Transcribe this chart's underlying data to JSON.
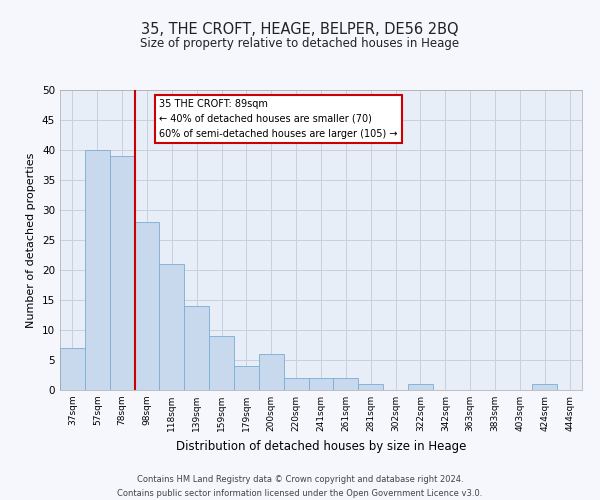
{
  "title": "35, THE CROFT, HEAGE, BELPER, DE56 2BQ",
  "subtitle": "Size of property relative to detached houses in Heage",
  "xlabel": "Distribution of detached houses by size in Heage",
  "ylabel": "Number of detached properties",
  "bins": [
    "37sqm",
    "57sqm",
    "78sqm",
    "98sqm",
    "118sqm",
    "139sqm",
    "159sqm",
    "179sqm",
    "200sqm",
    "220sqm",
    "241sqm",
    "261sqm",
    "281sqm",
    "302sqm",
    "322sqm",
    "342sqm",
    "363sqm",
    "383sqm",
    "403sqm",
    "424sqm",
    "444sqm"
  ],
  "bar_values": [
    7,
    40,
    39,
    28,
    21,
    14,
    9,
    4,
    6,
    2,
    2,
    2,
    1,
    0,
    1,
    0,
    0,
    0,
    0,
    1,
    0
  ],
  "bar_color": "#c8d9ee",
  "bar_edge_color": "#7aadd4",
  "grid_color": "#c8d0dc",
  "background_color": "#e8eef7",
  "annotation_title": "35 THE CROFT: 89sqm",
  "annotation_line1": "← 40% of detached houses are smaller (70)",
  "annotation_line2": "60% of semi-detached houses are larger (105) →",
  "annotation_box_color": "#ffffff",
  "annotation_border_color": "#cc0000",
  "redline_color": "#cc0000",
  "ylim": [
    0,
    50
  ],
  "yticks": [
    0,
    5,
    10,
    15,
    20,
    25,
    30,
    35,
    40,
    45,
    50
  ],
  "footer_line1": "Contains HM Land Registry data © Crown copyright and database right 2024.",
  "footer_line2": "Contains public sector information licensed under the Open Government Licence v3.0."
}
